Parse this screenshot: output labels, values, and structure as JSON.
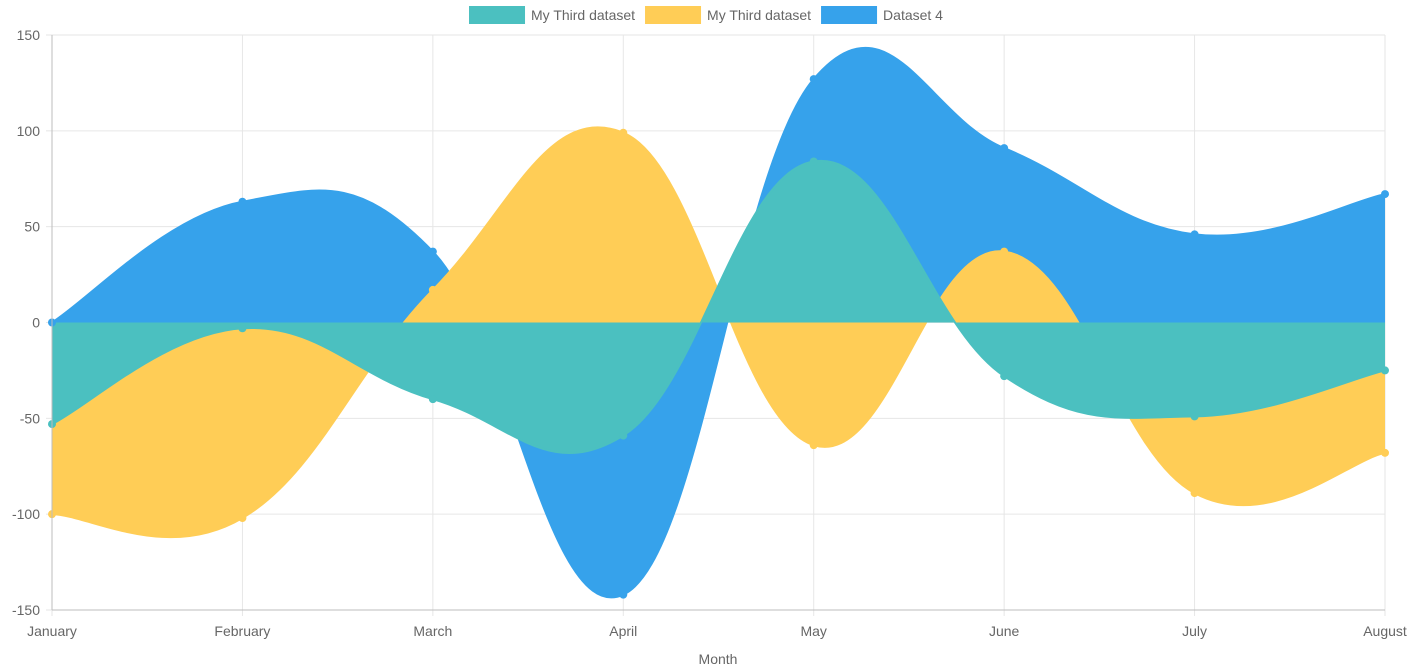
{
  "chart_data": {
    "type": "area",
    "title": "",
    "xlabel": "Month",
    "ylabel": "",
    "categories": [
      "January",
      "February",
      "March",
      "April",
      "May",
      "June",
      "July",
      "August"
    ],
    "ylim": [
      -150,
      150
    ],
    "yticks": [
      150,
      100,
      50,
      0,
      -50,
      -100,
      -150
    ],
    "grid": true,
    "legend_position": "top",
    "fill_origin": 0,
    "series": [
      {
        "name": "My Third dataset",
        "color": "#4bc0c0",
        "values": [
          -53,
          -3,
          -40,
          -59,
          84,
          -28,
          -49,
          -25
        ]
      },
      {
        "name": "My Third dataset",
        "color": "#ffcd56",
        "values": [
          -100,
          -102,
          17,
          99,
          -64,
          37,
          -89,
          -68
        ]
      },
      {
        "name": "Dataset 4",
        "color": "#36a2eb",
        "values": [
          0,
          63,
          37,
          -142,
          127,
          91,
          46,
          67
        ]
      }
    ]
  }
}
